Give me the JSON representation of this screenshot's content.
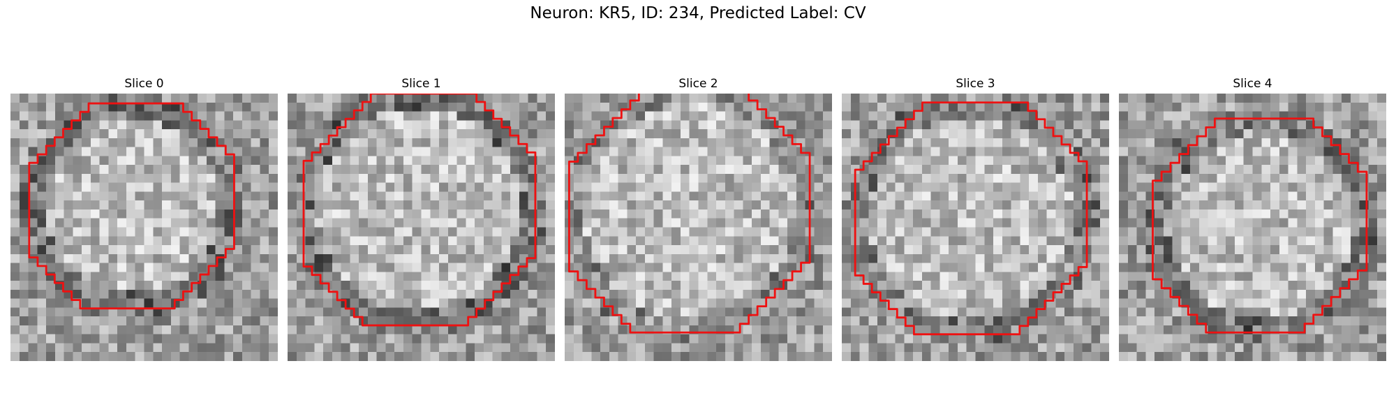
{
  "figure": {
    "title": "Neuron: KR5, ID: 234, Predicted Label: CV"
  },
  "slices": [
    {
      "title": "Slice 0"
    },
    {
      "title": "Slice 1"
    },
    {
      "title": "Slice 2"
    },
    {
      "title": "Slice 3"
    },
    {
      "title": "Slice 4"
    }
  ],
  "colors": {
    "contour": "#ee1111",
    "background": "#ffffff"
  }
}
